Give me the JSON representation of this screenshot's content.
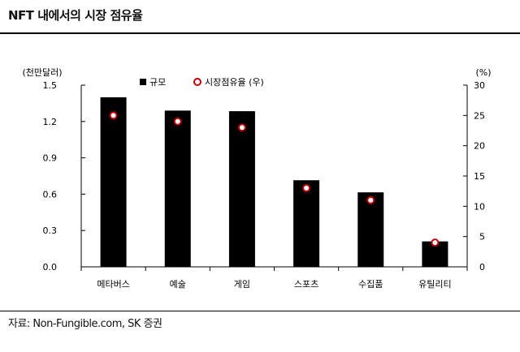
{
  "title": "NFT 내에서의 시장 점유율",
  "source": "자료: Non-Fungible.com, SK 증권",
  "chart_data": {
    "type": "bar",
    "categories": [
      "메타버스",
      "예술",
      "게임",
      "스포츠",
      "수집품",
      "유틸리티"
    ],
    "series": [
      {
        "name": "규모",
        "type": "bar",
        "axis": "left",
        "values": [
          1.4,
          1.29,
          1.285,
          0.715,
          0.615,
          0.21
        ],
        "color": "#000000"
      },
      {
        "name": "시장점유율 (우)",
        "type": "scatter",
        "axis": "right",
        "values": [
          25,
          24,
          23,
          13,
          11,
          4
        ],
        "color": "#c00000"
      }
    ],
    "y_left": {
      "unit": "(천만달러)",
      "range": [
        0,
        1.5
      ],
      "ticks": [
        "0.0",
        "0.3",
        "0.6",
        "0.9",
        "1.2",
        "1.5"
      ]
    },
    "y_right": {
      "unit": "(%)",
      "range": [
        0,
        30
      ],
      "ticks": [
        "0",
        "5",
        "10",
        "15",
        "20",
        "25",
        "30"
      ]
    },
    "legend_position": "top",
    "grid": false
  }
}
